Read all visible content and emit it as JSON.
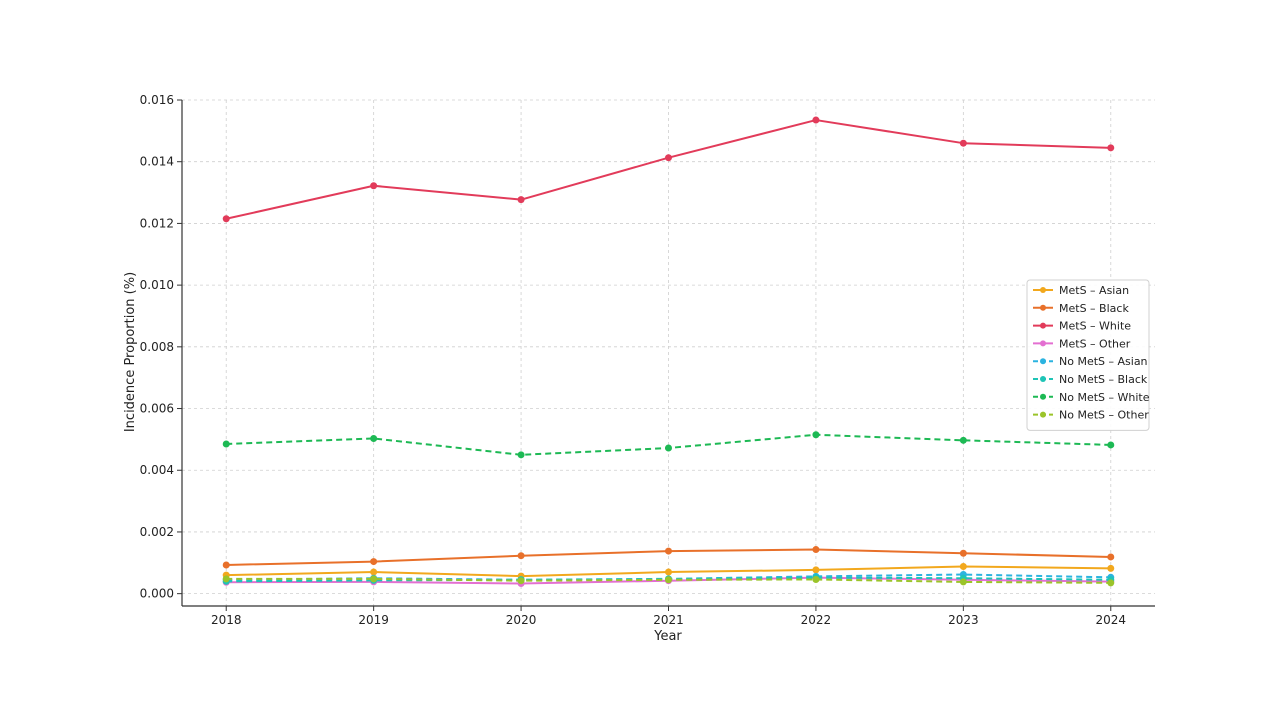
{
  "chart_data": {
    "type": "line",
    "title": "",
    "xlabel": "Year",
    "ylabel": "Incidence Proportion (%)",
    "x": [
      2018,
      2019,
      2020,
      2021,
      2022,
      2023,
      2024
    ],
    "xticks": [
      "2018",
      "2019",
      "2020",
      "2021",
      "2022",
      "2023",
      "2024"
    ],
    "ylim": [
      -0.0004,
      0.016
    ],
    "yticks": [
      "0.000",
      "0.002",
      "0.004",
      "0.006",
      "0.008",
      "0.010",
      "0.012",
      "0.014",
      "0.016"
    ],
    "grid": true,
    "legend_position": "center-right",
    "series": [
      {
        "name": "MetS – Asian",
        "color": "#F2A81D",
        "dashed": false,
        "values": [
          0.0006,
          0.0007,
          0.00057,
          0.0007,
          0.00077,
          0.00088,
          0.00082
        ]
      },
      {
        "name": "MetS – Black",
        "color": "#E8702A",
        "dashed": false,
        "values": [
          0.00093,
          0.00104,
          0.00123,
          0.00138,
          0.00143,
          0.00131,
          0.00119
        ]
      },
      {
        "name": "MetS – White",
        "color": "#E23B5A",
        "dashed": false,
        "values": [
          0.01215,
          0.01322,
          0.01277,
          0.01413,
          0.01535,
          0.0146,
          0.01445
        ]
      },
      {
        "name": "MetS – Other",
        "color": "#E36FD1",
        "dashed": false,
        "values": [
          0.00037,
          0.00038,
          0.00033,
          0.00042,
          0.00052,
          0.00045,
          0.00039
        ]
      },
      {
        "name": "No MetS – Asian",
        "color": "#2BB3E0",
        "dashed": true,
        "values": [
          0.00045,
          0.0005,
          0.00045,
          0.00048,
          0.00056,
          0.00062,
          0.00053
        ]
      },
      {
        "name": "No MetS – Black",
        "color": "#1FC4B6",
        "dashed": true,
        "values": [
          0.0004,
          0.00043,
          0.00045,
          0.00047,
          0.00052,
          0.0005,
          0.00045
        ]
      },
      {
        "name": "No MetS – White",
        "color": "#1DB954",
        "dashed": true,
        "values": [
          0.00485,
          0.00503,
          0.0045,
          0.00472,
          0.00515,
          0.00497,
          0.00482
        ]
      },
      {
        "name": "No MetS – Other",
        "color": "#9BC42A",
        "dashed": true,
        "values": [
          0.00048,
          0.00048,
          0.00042,
          0.00045,
          0.00046,
          0.00038,
          0.00035
        ]
      }
    ]
  }
}
